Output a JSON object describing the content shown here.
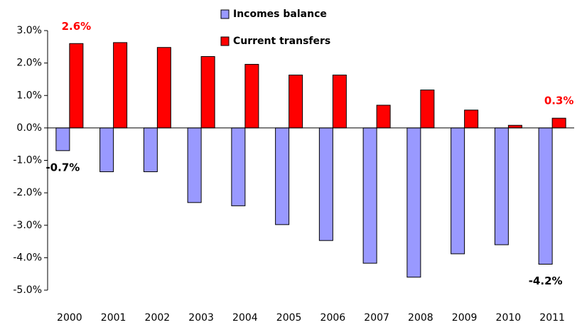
{
  "chart_data": {
    "type": "bar",
    "categories": [
      "2000",
      "2001",
      "2002",
      "2003",
      "2004",
      "2005",
      "2006",
      "2007",
      "2008",
      "2009",
      "2010",
      "2011"
    ],
    "series": [
      {
        "name": "Incomes balance",
        "color": "#9999ff",
        "values": [
          -0.7,
          -1.35,
          -1.35,
          -2.3,
          -2.4,
          -2.98,
          -3.47,
          -4.17,
          -4.6,
          -3.88,
          -3.6,
          -4.2
        ],
        "value_labels": [
          "-0.7%",
          null,
          null,
          null,
          null,
          null,
          null,
          null,
          null,
          null,
          null,
          "-4.2%"
        ],
        "label_color": "#000000"
      },
      {
        "name": "Current transfers",
        "color": "#ff0000",
        "values": [
          2.6,
          2.63,
          2.48,
          2.2,
          1.96,
          1.63,
          1.63,
          0.7,
          1.17,
          0.55,
          0.08,
          0.3
        ],
        "value_labels": [
          "2.6%",
          null,
          null,
          null,
          null,
          null,
          null,
          null,
          null,
          null,
          null,
          "0.3%"
        ],
        "label_color": "#ff0000"
      }
    ],
    "ylim": [
      -5,
      3
    ],
    "yticks": [
      {
        "value": -5,
        "label": "-5.0%"
      },
      {
        "value": -4,
        "label": "-4.0%"
      },
      {
        "value": -3,
        "label": "-3.0%"
      },
      {
        "value": -2,
        "label": "-2.0%"
      },
      {
        "value": -1,
        "label": "-1.0%"
      },
      {
        "value": 0,
        "label": "0.0%"
      },
      {
        "value": 1,
        "label": "1.0%"
      },
      {
        "value": 2,
        "label": "2.0%"
      },
      {
        "value": 3,
        "label": "3.0%"
      }
    ],
    "grid": false,
    "legend": "top"
  }
}
